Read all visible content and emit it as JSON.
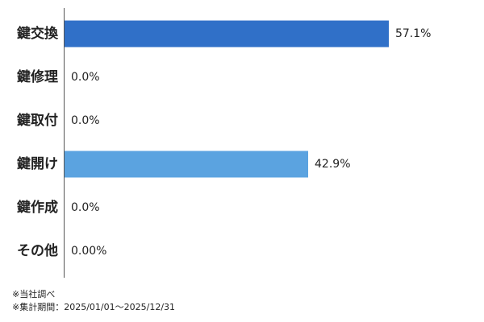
{
  "chart_data": {
    "type": "bar",
    "orientation": "horizontal",
    "categories": [
      "鍵交換",
      "鍵修理",
      "鍵取付",
      "鍵開け",
      "鍵作成",
      "その他"
    ],
    "values": [
      57.1,
      0,
      0,
      42.9,
      0,
      0
    ],
    "value_labels": [
      "57.1%",
      "0.0%",
      "0.0%",
      "42.9%",
      "0.0%",
      "0.00%"
    ],
    "colors": [
      "#3070c8",
      "#5ba3e0",
      "#5ba3e0",
      "#5ba3e0",
      "#5ba3e0",
      "#5ba3e0"
    ],
    "notes": [
      "※当社調べ",
      "※集計期間：2025/01/01～2025/12/31"
    ]
  }
}
